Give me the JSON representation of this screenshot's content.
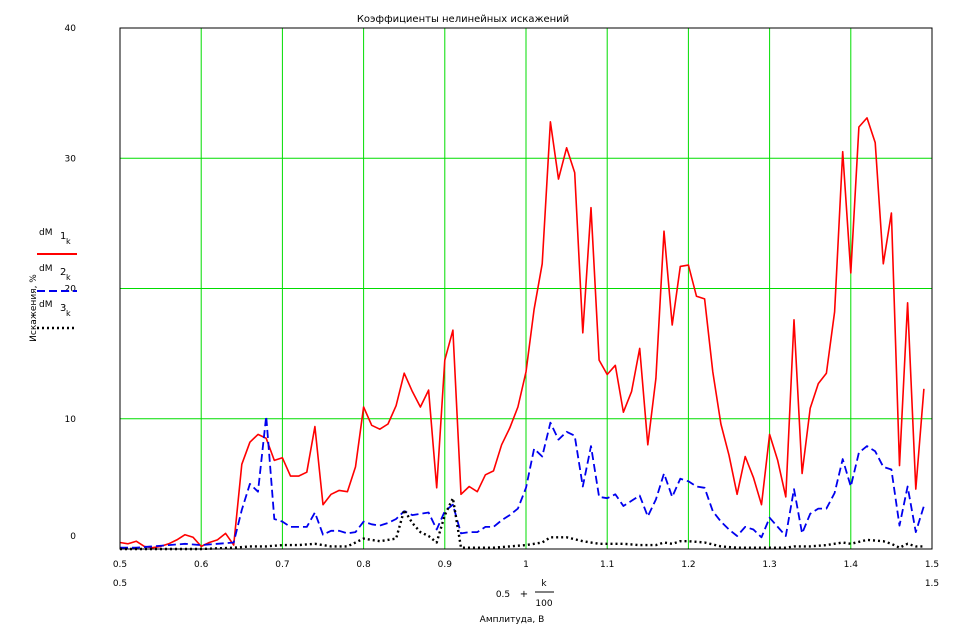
{
  "chart_data": {
    "type": "line",
    "title": "Коэффициенты нелинейных искажений",
    "xlabel": "Амплитуда, В",
    "ylabel": "Искажения, %",
    "x_expr": {
      "left": "0.5",
      "plus": "+",
      "num": "k",
      "den": "100"
    },
    "x_range_labels": {
      "left": "0.5",
      "right": "1.5"
    },
    "xlim": [
      0.5,
      1.5
    ],
    "ylim": [
      0,
      40
    ],
    "xticks": [
      0.5,
      0.6,
      0.7,
      0.8,
      0.9,
      1.0,
      1.1,
      1.2,
      1.3,
      1.4,
      1.5
    ],
    "xtick_labels": [
      "0.5",
      "0.6",
      "0.7",
      "0.8",
      "0.9",
      "1",
      "1.1",
      "1.2",
      "1.3",
      "1.4",
      "1.5"
    ],
    "yticks": [
      0,
      10,
      20,
      30,
      40
    ],
    "ytick_labels": [
      "0",
      "10",
      "20",
      "30",
      "40"
    ],
    "grid": true,
    "legend": "left",
    "series": [
      {
        "name": "dM 1 k",
        "legend_main": "dM",
        "legend_sub": "1",
        "legend_subsub": "k",
        "color": "#ff0000",
        "style": "solid",
        "points": [
          [
            0.5,
            0.5
          ],
          [
            0.51,
            0.4
          ],
          [
            0.52,
            0.6
          ],
          [
            0.53,
            0.2
          ],
          [
            0.54,
            0.1
          ],
          [
            0.55,
            0.2
          ],
          [
            0.56,
            0.4
          ],
          [
            0.57,
            0.7
          ],
          [
            0.58,
            1.1
          ],
          [
            0.59,
            0.9
          ],
          [
            0.6,
            0.2
          ],
          [
            0.61,
            0.5
          ],
          [
            0.62,
            0.7
          ],
          [
            0.63,
            1.2
          ],
          [
            0.64,
            0.3
          ],
          [
            0.65,
            6.5
          ],
          [
            0.66,
            8.2
          ],
          [
            0.67,
            8.8
          ],
          [
            0.68,
            8.5
          ],
          [
            0.69,
            6.8
          ],
          [
            0.7,
            7.0
          ],
          [
            0.71,
            5.6
          ],
          [
            0.72,
            5.6
          ],
          [
            0.73,
            5.9
          ],
          [
            0.74,
            9.4
          ],
          [
            0.75,
            3.4
          ],
          [
            0.76,
            4.2
          ],
          [
            0.77,
            4.5
          ],
          [
            0.78,
            4.4
          ],
          [
            0.79,
            6.3
          ],
          [
            0.8,
            10.9
          ],
          [
            0.81,
            9.5
          ],
          [
            0.82,
            9.2
          ],
          [
            0.83,
            9.6
          ],
          [
            0.84,
            11.0
          ],
          [
            0.85,
            13.5
          ],
          [
            0.86,
            12.1
          ],
          [
            0.87,
            10.9
          ],
          [
            0.88,
            12.2
          ],
          [
            0.89,
            4.7
          ],
          [
            0.9,
            14.5
          ],
          [
            0.91,
            16.8
          ],
          [
            0.92,
            4.2
          ],
          [
            0.93,
            4.8
          ],
          [
            0.94,
            4.4
          ],
          [
            0.95,
            5.7
          ],
          [
            0.96,
            6.0
          ],
          [
            0.97,
            8.0
          ],
          [
            0.98,
            9.3
          ],
          [
            0.99,
            10.9
          ],
          [
            1.0,
            13.6
          ],
          [
            1.01,
            18.4
          ],
          [
            1.02,
            21.9
          ],
          [
            1.03,
            32.8
          ],
          [
            1.04,
            28.4
          ],
          [
            1.05,
            30.8
          ],
          [
            1.06,
            28.9
          ],
          [
            1.07,
            16.6
          ],
          [
            1.08,
            26.2
          ],
          [
            1.09,
            14.5
          ],
          [
            1.1,
            13.4
          ],
          [
            1.11,
            14.1
          ],
          [
            1.12,
            10.5
          ],
          [
            1.13,
            12.1
          ],
          [
            1.14,
            15.4
          ],
          [
            1.15,
            8.0
          ],
          [
            1.16,
            13.1
          ],
          [
            1.17,
            24.4
          ],
          [
            1.18,
            17.2
          ],
          [
            1.19,
            21.7
          ],
          [
            1.2,
            21.8
          ],
          [
            1.21,
            19.4
          ],
          [
            1.22,
            19.2
          ],
          [
            1.23,
            13.6
          ],
          [
            1.24,
            9.6
          ],
          [
            1.25,
            7.2
          ],
          [
            1.26,
            4.2
          ],
          [
            1.27,
            7.1
          ],
          [
            1.28,
            5.5
          ],
          [
            1.29,
            3.4
          ],
          [
            1.3,
            8.8
          ],
          [
            1.31,
            6.8
          ],
          [
            1.32,
            4.0
          ],
          [
            1.33,
            17.6
          ],
          [
            1.34,
            5.8
          ],
          [
            1.35,
            10.8
          ],
          [
            1.36,
            12.7
          ],
          [
            1.37,
            13.5
          ],
          [
            1.38,
            18.2
          ],
          [
            1.39,
            30.5
          ],
          [
            1.4,
            21.2
          ],
          [
            1.41,
            32.4
          ],
          [
            1.42,
            33.1
          ],
          [
            1.43,
            31.2
          ],
          [
            1.44,
            21.9
          ],
          [
            1.45,
            25.8
          ],
          [
            1.46,
            6.4
          ],
          [
            1.47,
            18.9
          ],
          [
            1.48,
            4.6
          ],
          [
            1.49,
            12.3
          ]
        ]
      },
      {
        "name": "dM 2 k",
        "legend_main": "dM",
        "legend_sub": "2",
        "legend_subsub": "k",
        "color": "#0000ee",
        "style": "dashed",
        "points": [
          [
            0.5,
            0.1
          ],
          [
            0.52,
            0.1
          ],
          [
            0.54,
            0.2
          ],
          [
            0.56,
            0.3
          ],
          [
            0.58,
            0.4
          ],
          [
            0.6,
            0.3
          ],
          [
            0.62,
            0.4
          ],
          [
            0.64,
            0.5
          ],
          [
            0.65,
            3.0
          ],
          [
            0.66,
            5.0
          ],
          [
            0.67,
            4.4
          ],
          [
            0.68,
            10.2
          ],
          [
            0.69,
            2.3
          ],
          [
            0.7,
            2.1
          ],
          [
            0.71,
            1.7
          ],
          [
            0.72,
            1.7
          ],
          [
            0.73,
            1.7
          ],
          [
            0.74,
            2.8
          ],
          [
            0.75,
            1.1
          ],
          [
            0.76,
            1.4
          ],
          [
            0.77,
            1.4
          ],
          [
            0.78,
            1.2
          ],
          [
            0.79,
            1.3
          ],
          [
            0.8,
            2.1
          ],
          [
            0.81,
            1.9
          ],
          [
            0.82,
            1.8
          ],
          [
            0.83,
            2.0
          ],
          [
            0.84,
            2.3
          ],
          [
            0.85,
            2.9
          ],
          [
            0.86,
            2.6
          ],
          [
            0.87,
            2.7
          ],
          [
            0.88,
            2.8
          ],
          [
            0.89,
            1.5
          ],
          [
            0.9,
            2.9
          ],
          [
            0.91,
            3.4
          ],
          [
            0.92,
            1.2
          ],
          [
            0.93,
            1.3
          ],
          [
            0.94,
            1.3
          ],
          [
            0.95,
            1.7
          ],
          [
            0.96,
            1.7
          ],
          [
            0.97,
            2.2
          ],
          [
            0.98,
            2.6
          ],
          [
            0.99,
            3.1
          ],
          [
            1.0,
            4.7
          ],
          [
            1.01,
            7.7
          ],
          [
            1.02,
            7.1
          ],
          [
            1.03,
            9.7
          ],
          [
            1.04,
            8.4
          ],
          [
            1.05,
            9.0
          ],
          [
            1.06,
            8.7
          ],
          [
            1.07,
            4.8
          ],
          [
            1.08,
            7.9
          ],
          [
            1.09,
            4.0
          ],
          [
            1.1,
            3.9
          ],
          [
            1.11,
            4.2
          ],
          [
            1.12,
            3.3
          ],
          [
            1.13,
            3.7
          ],
          [
            1.14,
            4.1
          ],
          [
            1.15,
            2.5
          ],
          [
            1.16,
            3.8
          ],
          [
            1.17,
            5.8
          ],
          [
            1.18,
            4.0
          ],
          [
            1.19,
            5.4
          ],
          [
            1.2,
            5.2
          ],
          [
            1.21,
            4.8
          ],
          [
            1.22,
            4.7
          ],
          [
            1.23,
            2.9
          ],
          [
            1.24,
            2.1
          ],
          [
            1.25,
            1.5
          ],
          [
            1.26,
            1.0
          ],
          [
            1.27,
            1.7
          ],
          [
            1.28,
            1.5
          ],
          [
            1.29,
            0.9
          ],
          [
            1.3,
            2.4
          ],
          [
            1.31,
            1.7
          ],
          [
            1.32,
            1.0
          ],
          [
            1.33,
            4.6
          ],
          [
            1.34,
            1.2
          ],
          [
            1.35,
            2.7
          ],
          [
            1.36,
            3.1
          ],
          [
            1.37,
            3.1
          ],
          [
            1.38,
            4.3
          ],
          [
            1.39,
            6.9
          ],
          [
            1.4,
            4.8
          ],
          [
            1.41,
            7.4
          ],
          [
            1.42,
            7.9
          ],
          [
            1.43,
            7.5
          ],
          [
            1.44,
            6.3
          ],
          [
            1.45,
            6.1
          ],
          [
            1.46,
            1.8
          ],
          [
            1.47,
            4.8
          ],
          [
            1.48,
            1.3
          ],
          [
            1.49,
            3.3
          ]
        ]
      },
      {
        "name": "dM 3 k",
        "legend_main": "dM",
        "legend_sub": "3",
        "legend_subsub": "k",
        "color": "#000000",
        "style": "dotted",
        "points": [
          [
            0.5,
            0.0
          ],
          [
            0.55,
            0.0
          ],
          [
            0.6,
            0.0
          ],
          [
            0.64,
            0.1
          ],
          [
            0.66,
            0.2
          ],
          [
            0.68,
            0.2
          ],
          [
            0.7,
            0.3
          ],
          [
            0.72,
            0.3
          ],
          [
            0.74,
            0.4
          ],
          [
            0.76,
            0.2
          ],
          [
            0.78,
            0.2
          ],
          [
            0.8,
            0.8
          ],
          [
            0.82,
            0.6
          ],
          [
            0.84,
            0.8
          ],
          [
            0.85,
            3.0
          ],
          [
            0.86,
            2.0
          ],
          [
            0.87,
            1.3
          ],
          [
            0.88,
            1.0
          ],
          [
            0.89,
            0.5
          ],
          [
            0.9,
            2.6
          ],
          [
            0.91,
            3.9
          ],
          [
            0.92,
            0.1
          ],
          [
            0.94,
            0.1
          ],
          [
            0.96,
            0.1
          ],
          [
            0.98,
            0.2
          ],
          [
            1.0,
            0.3
          ],
          [
            1.02,
            0.5
          ],
          [
            1.03,
            0.9
          ],
          [
            1.05,
            0.9
          ],
          [
            1.07,
            0.6
          ],
          [
            1.09,
            0.4
          ],
          [
            1.1,
            0.4
          ],
          [
            1.12,
            0.4
          ],
          [
            1.14,
            0.3
          ],
          [
            1.16,
            0.3
          ],
          [
            1.17,
            0.5
          ],
          [
            1.18,
            0.4
          ],
          [
            1.19,
            0.6
          ],
          [
            1.2,
            0.6
          ],
          [
            1.22,
            0.5
          ],
          [
            1.24,
            0.2
          ],
          [
            1.26,
            0.1
          ],
          [
            1.28,
            0.1
          ],
          [
            1.3,
            0.1
          ],
          [
            1.32,
            0.1
          ],
          [
            1.33,
            0.2
          ],
          [
            1.35,
            0.2
          ],
          [
            1.37,
            0.3
          ],
          [
            1.39,
            0.5
          ],
          [
            1.4,
            0.4
          ],
          [
            1.42,
            0.7
          ],
          [
            1.44,
            0.6
          ],
          [
            1.45,
            0.4
          ],
          [
            1.46,
            0.1
          ],
          [
            1.47,
            0.4
          ],
          [
            1.48,
            0.2
          ],
          [
            1.49,
            0.2
          ]
        ]
      }
    ]
  }
}
